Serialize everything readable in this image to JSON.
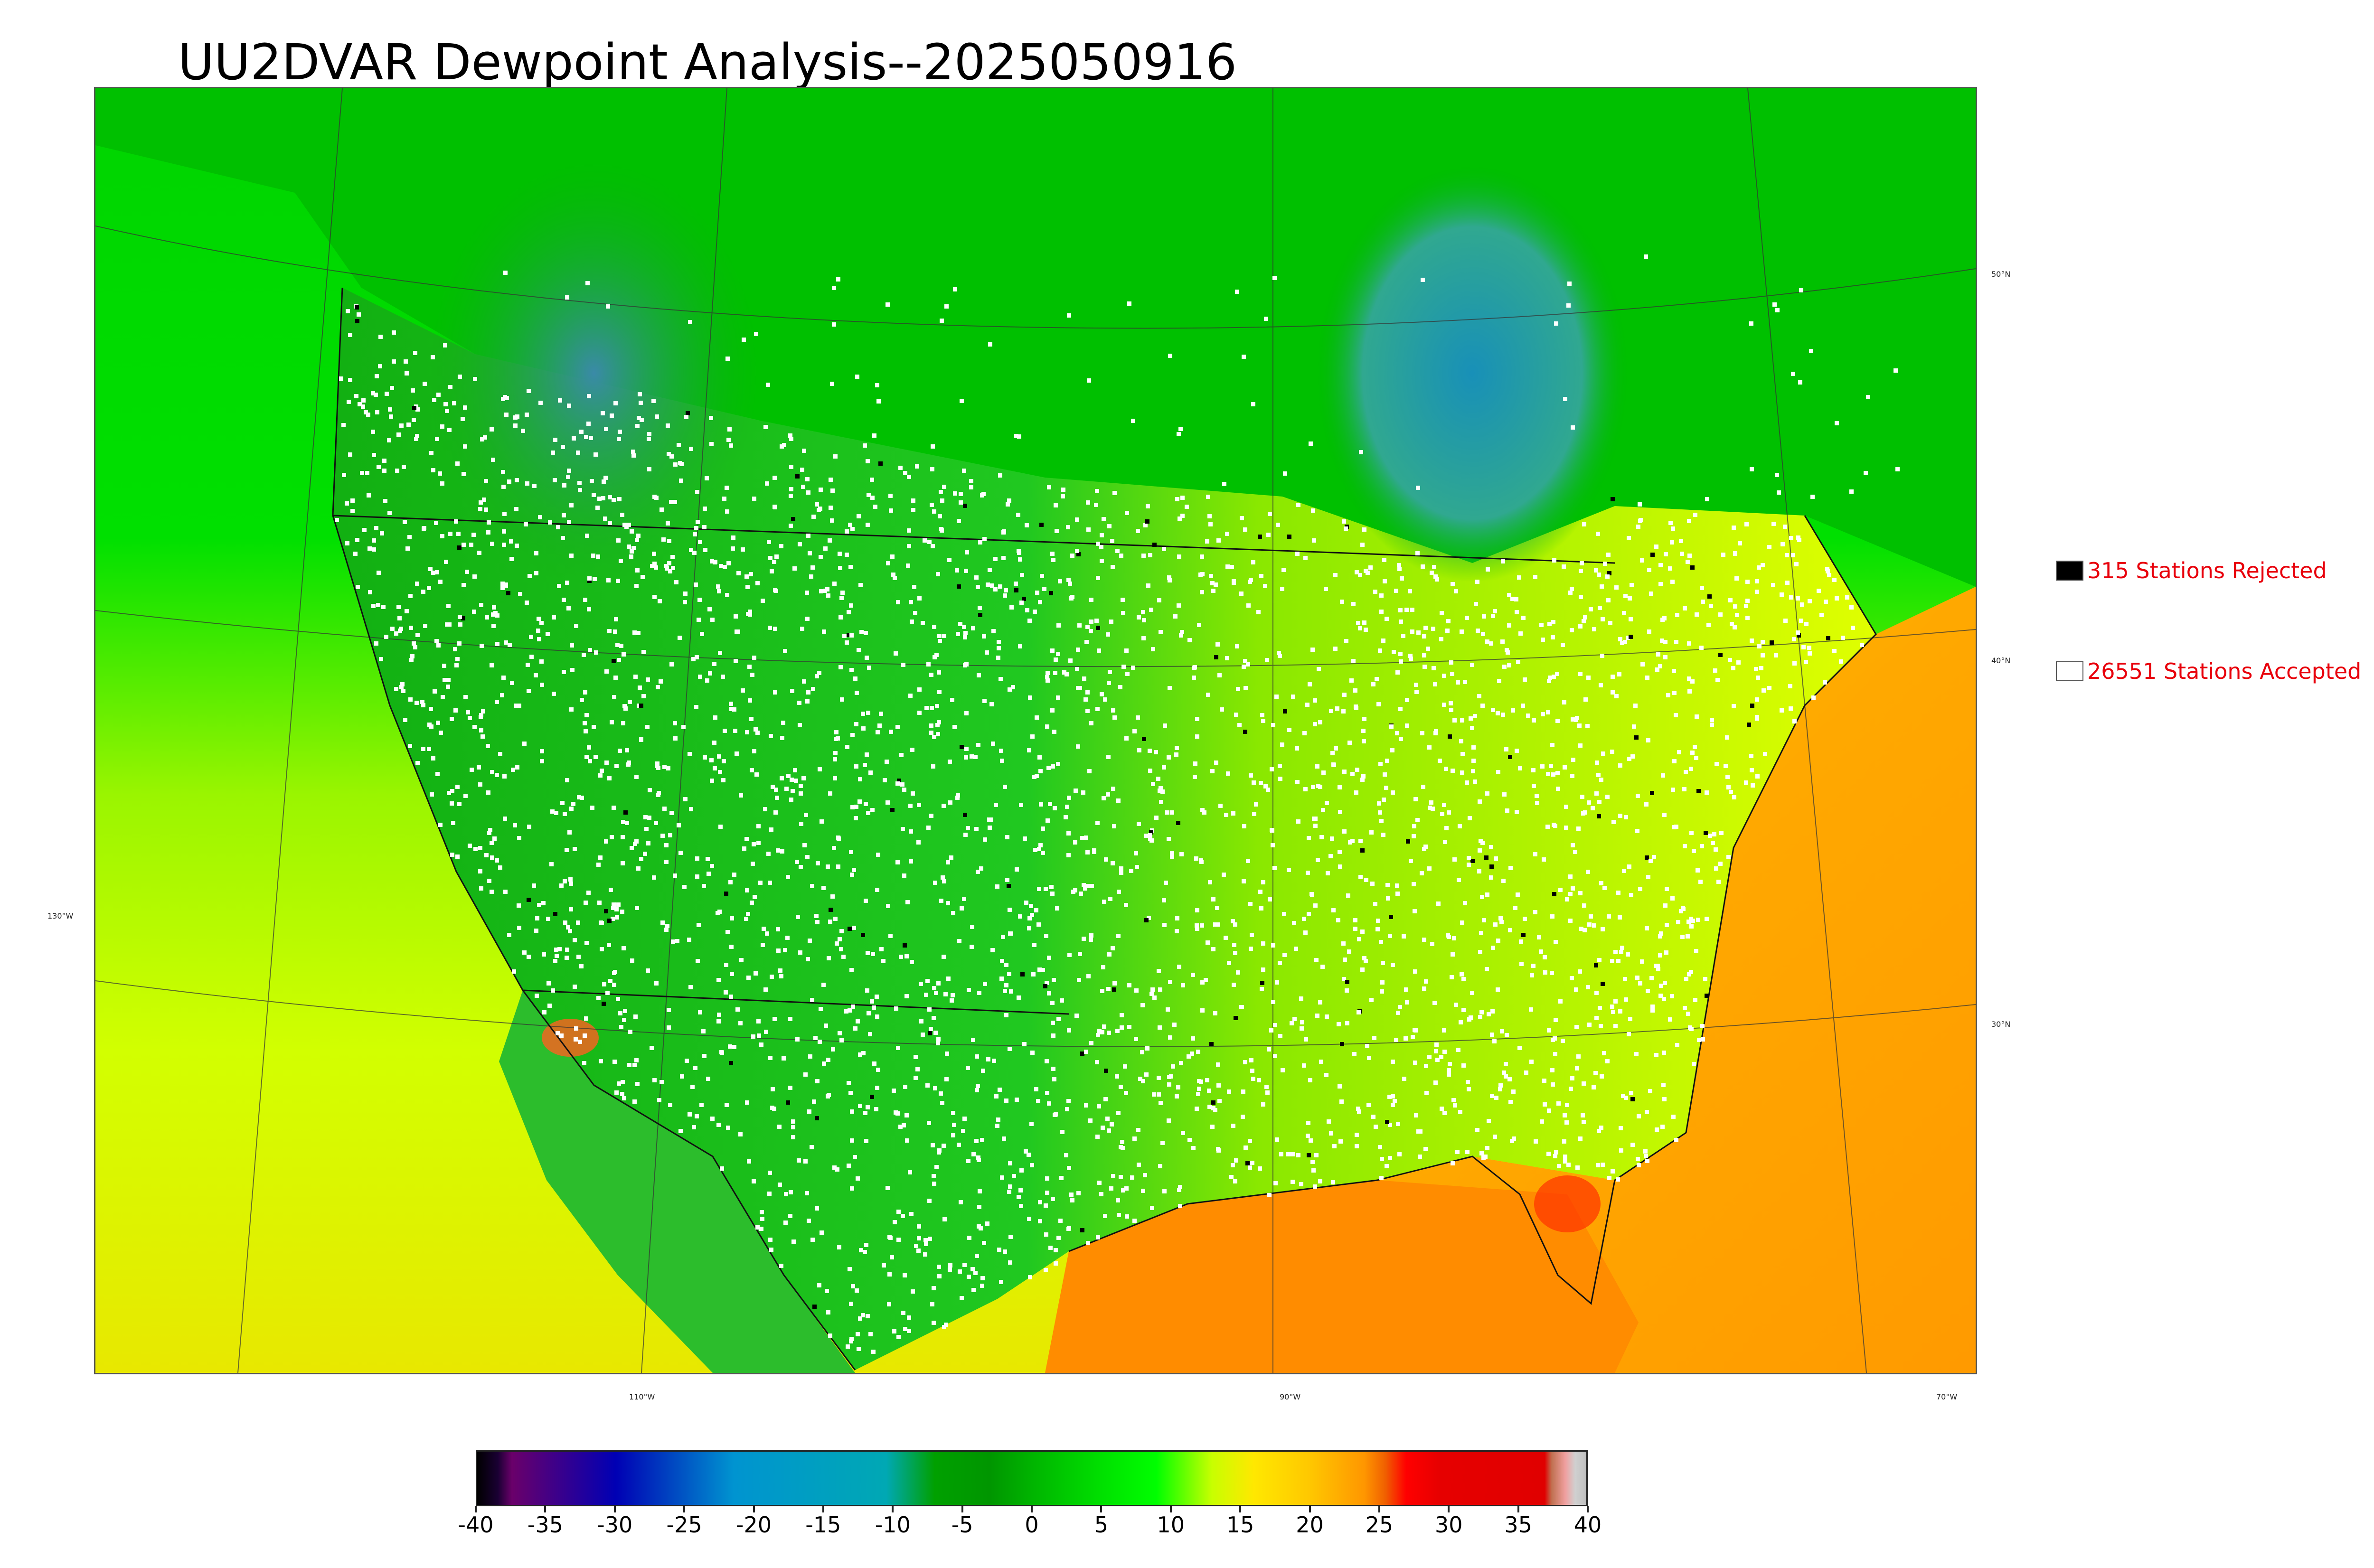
{
  "title": "UU2DVAR Dewpoint Analysis--2025050916",
  "legend": {
    "rejected": {
      "label": "315 Stations Rejected",
      "swatch_color": "#000000"
    },
    "accepted": {
      "label": "26551 Stations Accepted",
      "swatch_color": "#ffffff"
    }
  },
  "graticule": {
    "lat_labels": [
      "50°N",
      "40°N",
      "30°N"
    ],
    "lon_left_label": "130°W",
    "lon_bottom_labels": [
      "110°W",
      "90°W",
      "70°W"
    ]
  },
  "colorbar": {
    "min": -40,
    "max": 40,
    "tick_labels": [
      "-40",
      "-35",
      "-30",
      "-25",
      "-20",
      "-15",
      "-10",
      "-5",
      "0",
      "5",
      "10",
      "15",
      "20",
      "25",
      "30",
      "35",
      "40"
    ],
    "stops": [
      {
        "value": -40,
        "color": "#000000"
      },
      {
        "value": -38.5,
        "color": "#1a0033"
      },
      {
        "value": -37.5,
        "color": "#6a006a"
      },
      {
        "value": -30,
        "color": "#0000b4"
      },
      {
        "value": -21.5,
        "color": "#0094d0"
      },
      {
        "value": -10.5,
        "color": "#00a8b4"
      },
      {
        "value": -7,
        "color": "#00a000"
      },
      {
        "value": -3,
        "color": "#009600"
      },
      {
        "value": 0,
        "color": "#00b400"
      },
      {
        "value": 5,
        "color": "#00e000"
      },
      {
        "value": 9,
        "color": "#00ff00"
      },
      {
        "value": 13,
        "color": "#c8ff00"
      },
      {
        "value": 16,
        "color": "#ffe800"
      },
      {
        "value": 20,
        "color": "#ffc800"
      },
      {
        "value": 24,
        "color": "#ff9600"
      },
      {
        "value": 25.5,
        "color": "#f06000"
      },
      {
        "value": 27,
        "color": "#ff0000"
      },
      {
        "value": 29.5,
        "color": "#e60000"
      },
      {
        "value": 37,
        "color": "#e00000"
      },
      {
        "value": 37.5,
        "color": "#c07050"
      },
      {
        "value": 38.5,
        "color": "#f0a0a0"
      },
      {
        "value": 39.2,
        "color": "#d0d0d0"
      },
      {
        "value": 40,
        "color": "#c0c0c0"
      }
    ]
  },
  "colors": {
    "ocean_pacific_south": "#c8ff00",
    "ocean_atlantic_south": "#ff9f00",
    "gulf": "#ff8a00",
    "canada": "#00c800",
    "land_west": "#14b414",
    "land_east": "#d8ff00",
    "hudson_cold": "#2aa8a0",
    "rockies_cold": "#3a9aa0",
    "station_accepted": "#ffffff",
    "station_rejected": "#000000"
  }
}
